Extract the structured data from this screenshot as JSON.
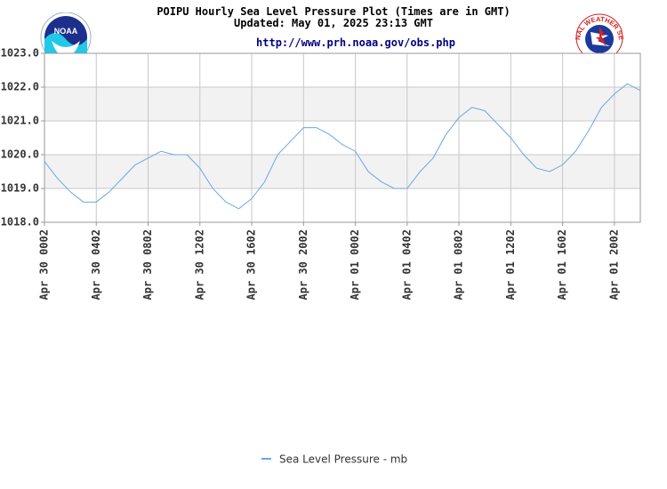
{
  "header": {
    "title": "POIPU Hourly Sea Level Pressure Plot (Times are in GMT)",
    "updated": "Updated: May 01, 2025 23:13 GMT",
    "url": "http://www.prh.noaa.gov/obs.php",
    "left_logo": {
      "icon": "noaa-logo-icon",
      "text": "NOAA"
    },
    "right_logo": {
      "icon": "nws-logo-icon",
      "text": "NATIONAL WEATHER SERVICE"
    }
  },
  "legend": {
    "label": "Sea Level Pressure - mb"
  },
  "colors": {
    "line": "#6aa6e8",
    "band": "#f2f2f2",
    "grid": "#c8c8c8",
    "axis": "#999999"
  },
  "chart_data": {
    "type": "line",
    "title": "POIPU Hourly Sea Level Pressure Plot (Times are in GMT)",
    "xlabel": "",
    "ylabel": "",
    "ylim": [
      1018.0,
      1023.0
    ],
    "yticks": [
      "1023.0",
      "1022.0",
      "1021.0",
      "1020.0",
      "1019.0",
      "1018.0"
    ],
    "yvalues": [
      1023.0,
      1022.0,
      1021.0,
      1020.0,
      1019.0,
      1018.0
    ],
    "xlim": [
      0,
      46
    ],
    "xticks": [
      {
        "hour": 0,
        "label": "Apr 30 0002"
      },
      {
        "hour": 4,
        "label": "Apr 30 0402"
      },
      {
        "hour": 8,
        "label": "Apr 30 0802"
      },
      {
        "hour": 12,
        "label": "Apr 30 1202"
      },
      {
        "hour": 16,
        "label": "Apr 30 1602"
      },
      {
        "hour": 20,
        "label": "Apr 30 2002"
      },
      {
        "hour": 24,
        "label": "Apr 01 0002"
      },
      {
        "hour": 28,
        "label": "Apr 01 0402"
      },
      {
        "hour": 32,
        "label": "Apr 01 0802"
      },
      {
        "hour": 36,
        "label": "Apr 01 1202"
      },
      {
        "hour": 40,
        "label": "Apr 01 1602"
      },
      {
        "hour": 44,
        "label": "Apr 01 2002"
      }
    ],
    "grid": true,
    "legend_position": "bottom-center",
    "series": [
      {
        "name": "Sea Level Pressure - mb",
        "x": [
          0,
          1,
          2,
          3,
          4,
          5,
          6,
          7,
          8,
          9,
          10,
          11,
          12,
          13,
          14,
          15,
          16,
          17,
          18,
          19,
          20,
          21,
          22,
          23,
          24,
          25,
          26,
          27,
          28,
          29,
          30,
          31,
          32,
          33,
          34,
          35,
          36,
          37,
          38,
          39,
          40,
          41,
          42,
          43,
          44,
          45,
          46
        ],
        "values": [
          1019.8,
          1019.3,
          1018.9,
          1018.6,
          1018.6,
          1018.9,
          1019.3,
          1019.7,
          1019.9,
          1020.1,
          1020.0,
          1020.0,
          1019.6,
          1019.0,
          1018.6,
          1018.4,
          1018.7,
          1019.2,
          1020.0,
          1020.4,
          1020.8,
          1020.8,
          1020.6,
          1020.3,
          1020.1,
          1019.5,
          1019.2,
          1019.0,
          1019.0,
          1019.5,
          1019.9,
          1020.6,
          1021.1,
          1021.4,
          1021.3,
          1020.9,
          1020.5,
          1020.0,
          1019.6,
          1019.5,
          1019.7,
          1020.1,
          1020.7,
          1021.4,
          1021.8,
          1022.1,
          1021.9
        ]
      }
    ]
  }
}
